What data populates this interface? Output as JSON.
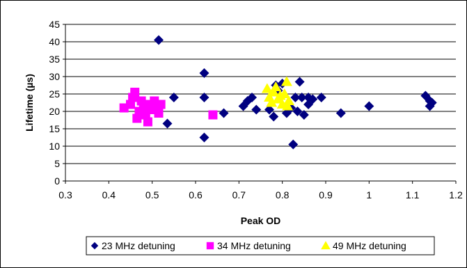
{
  "chart_data": {
    "type": "scatter",
    "title": "",
    "xlabel": "Peak OD",
    "ylabel": "Lifetime (µs)",
    "xlim": [
      0.3,
      1.2
    ],
    "ylim": [
      0,
      45
    ],
    "x_ticks": [
      "0.3",
      "0.4",
      "0.5",
      "0.6",
      "0.7",
      "0.8",
      "0.9",
      "1",
      "1.1",
      "1.2"
    ],
    "y_ticks": [
      "0",
      "5",
      "10",
      "15",
      "20",
      "25",
      "30",
      "35",
      "40",
      "45"
    ],
    "grid": "horizontal",
    "legend_position": "bottom",
    "series": [
      {
        "name": "23 MHz detuning",
        "marker": "diamond",
        "color": "#000080",
        "points": [
          [
            0.515,
            40.5
          ],
          [
            0.62,
            31
          ],
          [
            0.62,
            24
          ],
          [
            0.535,
            16.5
          ],
          [
            0.55,
            24
          ],
          [
            0.62,
            12.5
          ],
          [
            0.665,
            19.5
          ],
          [
            0.71,
            21.5
          ],
          [
            0.72,
            23
          ],
          [
            0.73,
            24
          ],
          [
            0.74,
            20.5
          ],
          [
            0.77,
            20.5
          ],
          [
            0.78,
            18.5
          ],
          [
            0.785,
            27.5
          ],
          [
            0.79,
            26
          ],
          [
            0.8,
            28
          ],
          [
            0.81,
            19.5
          ],
          [
            0.82,
            21
          ],
          [
            0.825,
            10.5
          ],
          [
            0.83,
            24
          ],
          [
            0.835,
            20
          ],
          [
            0.84,
            28.5
          ],
          [
            0.845,
            24
          ],
          [
            0.85,
            19
          ],
          [
            0.86,
            22
          ],
          [
            0.86,
            24
          ],
          [
            0.87,
            23.5
          ],
          [
            0.89,
            24
          ],
          [
            0.935,
            19.5
          ],
          [
            1.0,
            21.5
          ],
          [
            1.13,
            24.5
          ],
          [
            1.14,
            23
          ],
          [
            1.14,
            21.5
          ],
          [
            1.145,
            22.5
          ]
        ]
      },
      {
        "name": "34 MHz detuning",
        "marker": "square",
        "color": "#ff00ff",
        "points": [
          [
            0.435,
            21
          ],
          [
            0.45,
            22
          ],
          [
            0.455,
            24
          ],
          [
            0.46,
            25.5
          ],
          [
            0.465,
            18
          ],
          [
            0.47,
            20
          ],
          [
            0.475,
            23
          ],
          [
            0.48,
            21
          ],
          [
            0.485,
            19
          ],
          [
            0.49,
            17
          ],
          [
            0.495,
            22
          ],
          [
            0.5,
            20.5
          ],
          [
            0.505,
            23
          ],
          [
            0.51,
            21.5
          ],
          [
            0.515,
            19.5
          ],
          [
            0.52,
            22
          ],
          [
            0.64,
            19
          ]
        ]
      },
      {
        "name": "49 MHz detuning",
        "marker": "triangle",
        "color": "#ffff00",
        "points": [
          [
            0.765,
            26.5
          ],
          [
            0.77,
            24
          ],
          [
            0.775,
            22.5
          ],
          [
            0.78,
            25.5
          ],
          [
            0.785,
            27
          ],
          [
            0.79,
            23.5
          ],
          [
            0.795,
            24.5
          ],
          [
            0.8,
            22
          ],
          [
            0.805,
            25
          ],
          [
            0.81,
            28.5
          ],
          [
            0.815,
            23
          ],
          [
            0.812,
            21.5
          ]
        ]
      }
    ]
  }
}
